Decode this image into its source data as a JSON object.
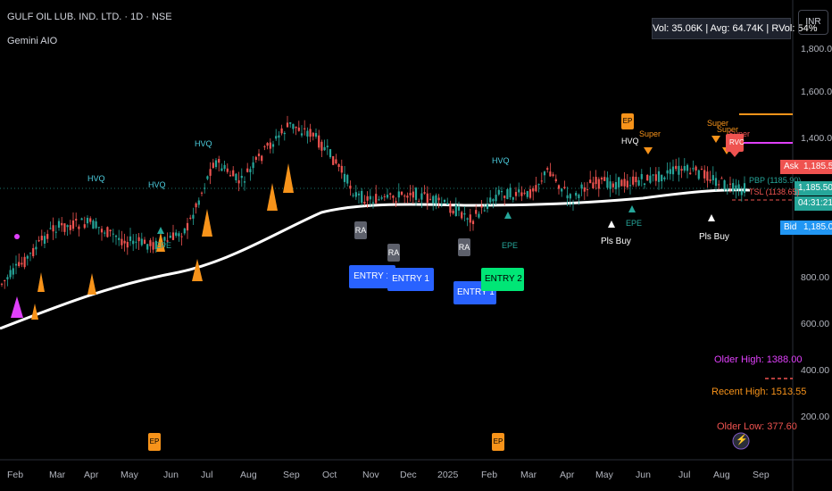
{
  "header": {
    "title": "GULF OIL LUB. IND. LTD. · 1D · NSE",
    "indicator": "Gemini AIO"
  },
  "statbox": "Vol: 35.06K | Avg: 64.74K | RVol: 54%",
  "currency": "INR",
  "price_axis": [
    "1,800.00",
    "1,600.00",
    "1,400.00",
    "800.00",
    "600.00",
    "400.00",
    "200.00"
  ],
  "price_tags": {
    "ask_label": "Ask",
    "ask_value": "1,185.50",
    "last_value": "1,185.50",
    "countdown": "04:31:21",
    "bid_label": "Bid",
    "bid_value": "1,185.00"
  },
  "levels": {
    "pbp": "PBP (1185.90)",
    "tsl": "TSL (1138.65)"
  },
  "x_axis": [
    "Feb",
    "Mar",
    "Apr",
    "May",
    "Jun",
    "Jul",
    "Aug",
    "Sep",
    "Oct",
    "Nov",
    "Dec",
    "2025",
    "Feb",
    "Mar",
    "Apr",
    "May",
    "Jun",
    "Jul",
    "Aug",
    "Sep"
  ],
  "annotations": {
    "hvq": "HVQ",
    "epe": "EPE",
    "super": "Super",
    "ep": "EP",
    "rvc": "RVC",
    "pls_buy": "Pls Buy",
    "ra": "RA",
    "entry1": "ENTRY 1",
    "entry2": "ENTRY 2"
  },
  "high_low": {
    "older_high": "Older High: 1388.00",
    "recent_high": "Recent High: 1513.55",
    "older_low": "Older Low: 377.60"
  },
  "colors": {
    "background": "#000000",
    "up": "#26a69a",
    "down": "#ef5350",
    "orange": "#f7931a",
    "magenta": "#e040fb",
    "entry_blue": "#2962ff",
    "entry_green": "#00e676"
  }
}
